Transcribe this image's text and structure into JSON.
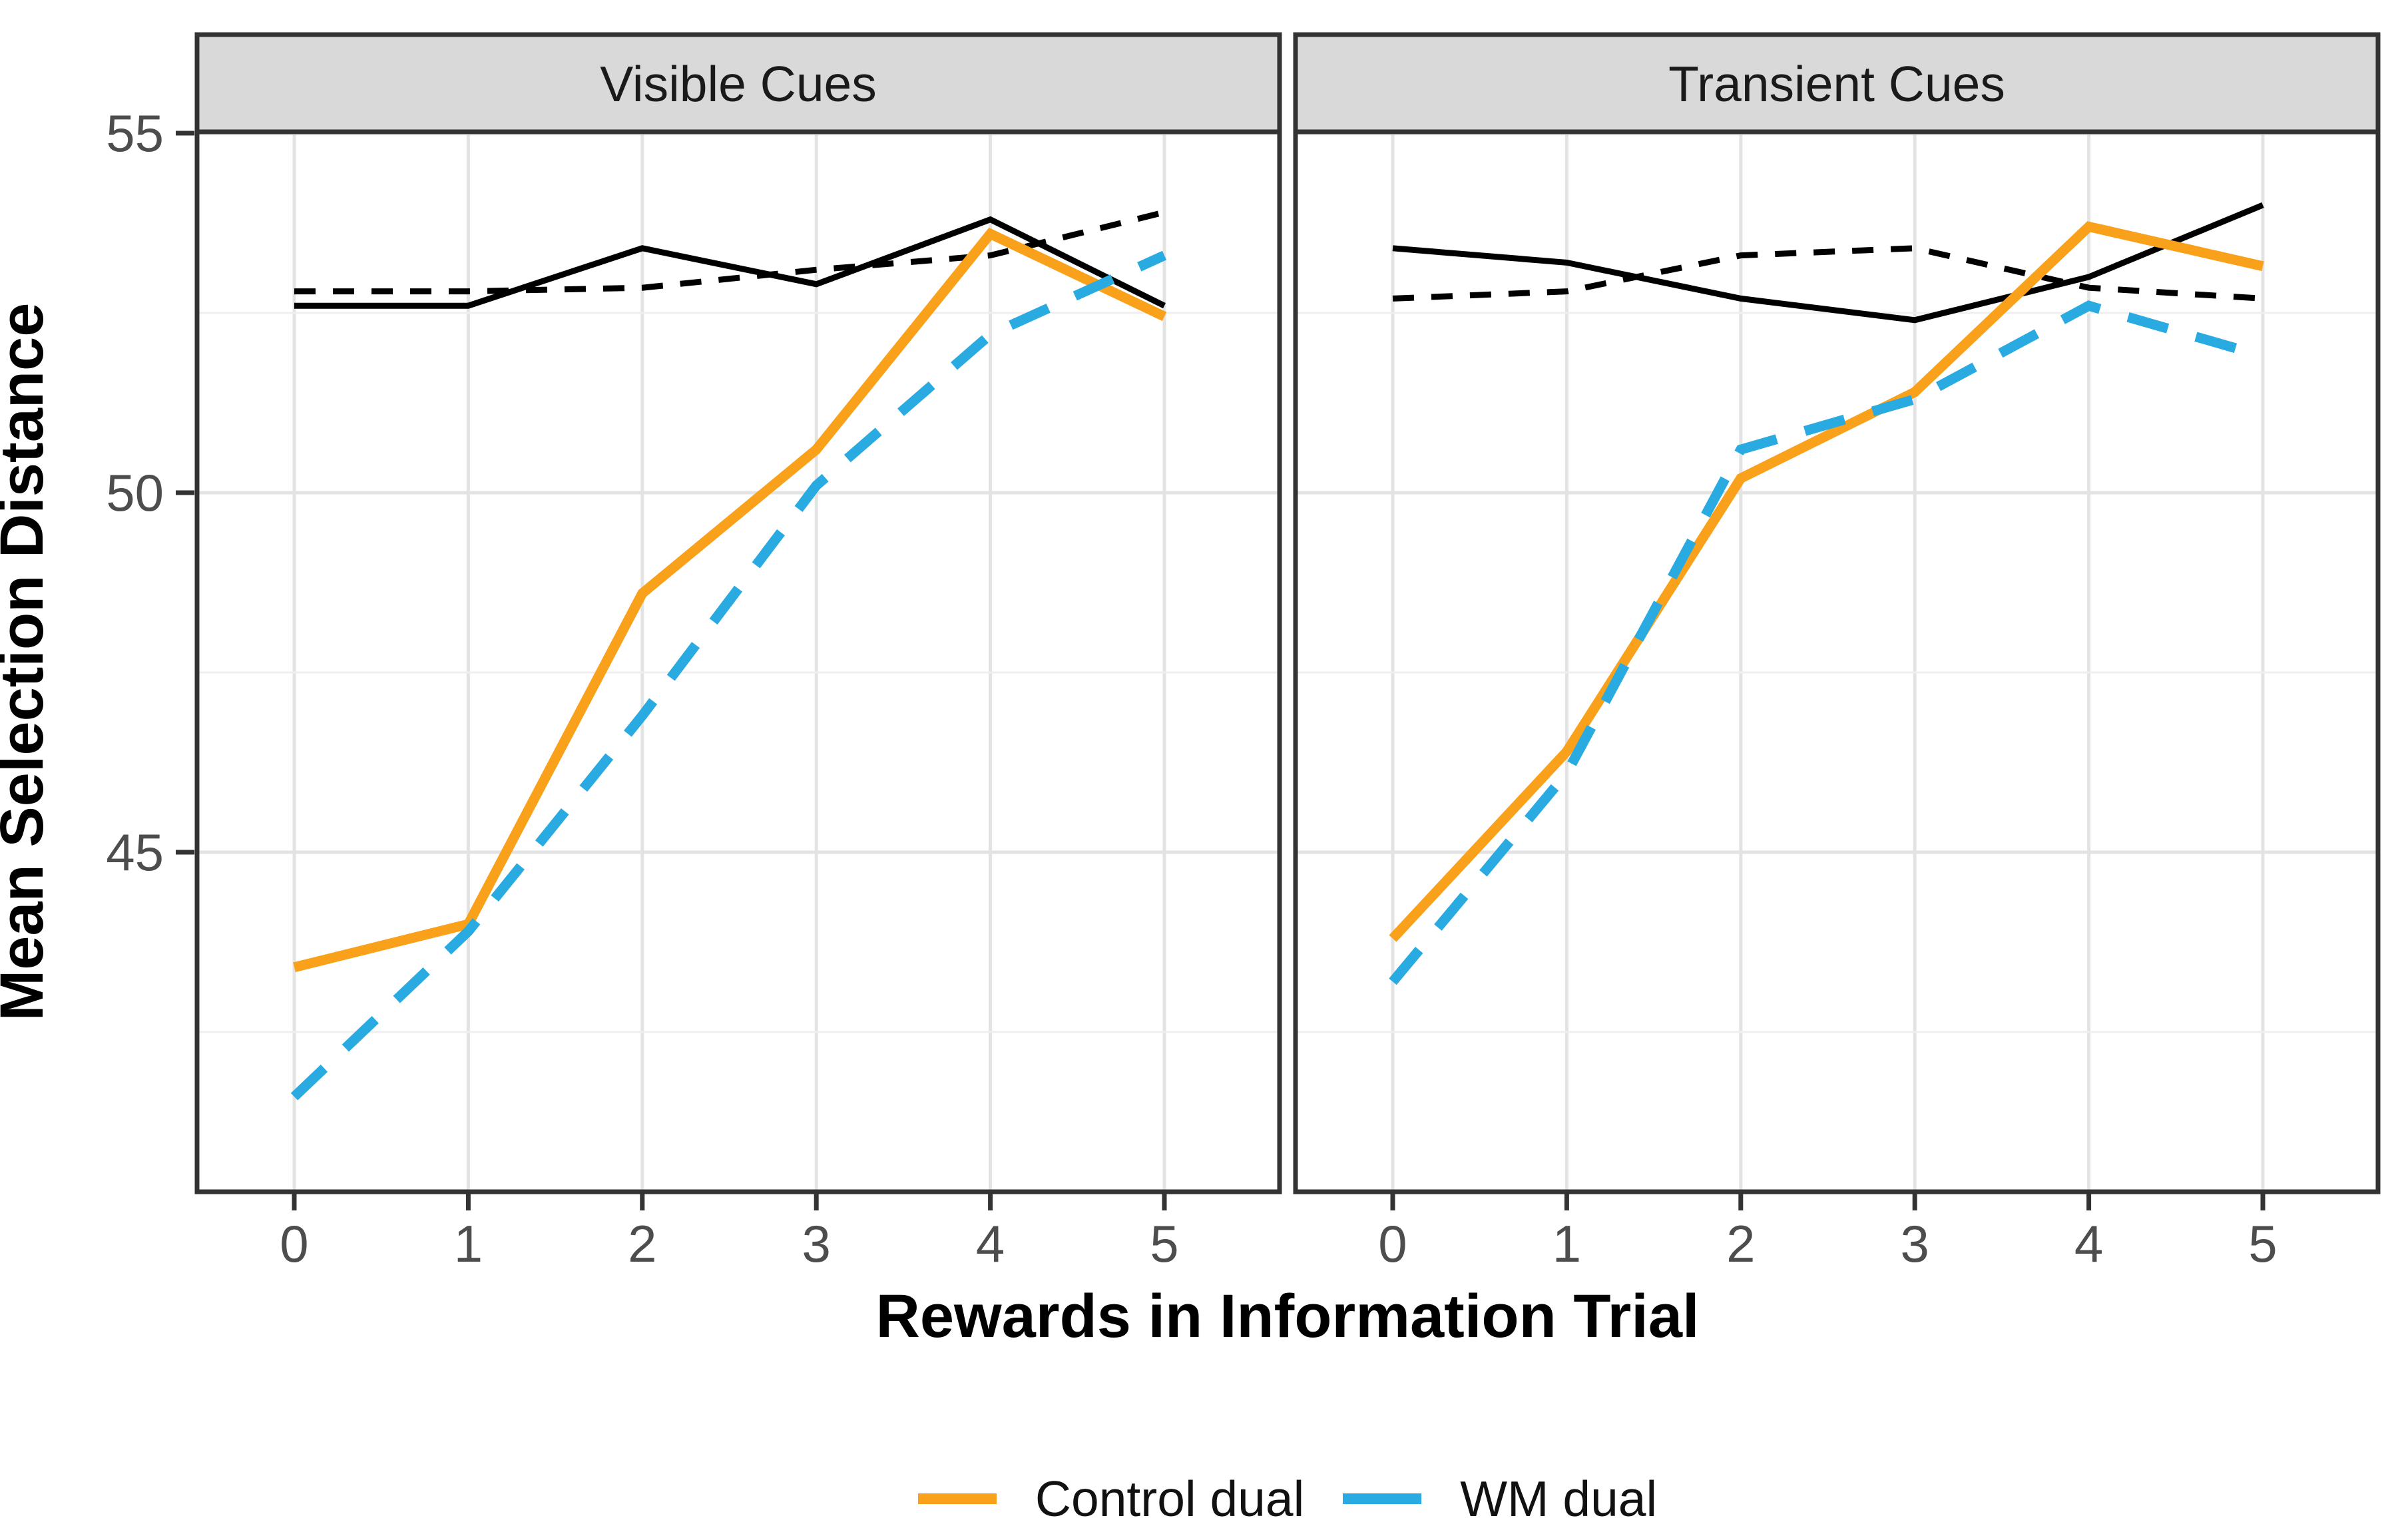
{
  "figure": {
    "background": "#FFFFFF"
  },
  "chart_data": {
    "type": "line",
    "x": [
      0,
      1,
      2,
      3,
      4,
      5
    ],
    "x_ticks": [
      "0",
      "1",
      "2",
      "3",
      "4",
      "5"
    ],
    "y_ticks": [
      "55",
      "50",
      "45"
    ],
    "y_tick_values": [
      55,
      50,
      45
    ],
    "ylim": [
      40.3,
      55.05
    ],
    "xlabel": "Rewards in Information Trial",
    "ylabel": "Mean Selection Distance",
    "grid": {
      "major_y": [
        55,
        50,
        45
      ],
      "minor_y": [
        52.5,
        47.5,
        42.5
      ],
      "vertical_at_x_ticks": true
    },
    "legend_position": "bottom",
    "facets": [
      {
        "title": "Visible Cues",
        "series": [
          {
            "name": "black solid (unlabeled)",
            "color": "#000000",
            "linetype": "solid",
            "width": 9,
            "values": [
              52.6,
              52.6,
              53.4,
              52.9,
              53.8,
              52.6
            ]
          },
          {
            "name": "black dashed (unlabeled)",
            "color": "#000000",
            "linetype": "dashed",
            "width": 9,
            "values": [
              52.8,
              52.8,
              52.85,
              53.1,
              53.3,
              53.9
            ]
          },
          {
            "name": "Control dual",
            "color": "#F9A11B",
            "linetype": "solid",
            "width": 15,
            "values": [
              43.4,
              44.0,
              48.6,
              50.6,
              53.6,
              52.45
            ]
          },
          {
            "name": "WM dual",
            "color": "#29ABE2",
            "linetype": "dashed",
            "width": 15,
            "values": [
              41.6,
              43.9,
              46.9,
              50.1,
              52.2,
              53.3
            ]
          }
        ]
      },
      {
        "title": "Transient Cues",
        "series": [
          {
            "name": "black solid (unlabeled)",
            "color": "#000000",
            "linetype": "solid",
            "width": 9,
            "values": [
              53.4,
              53.2,
              52.7,
              52.4,
              53.0,
              54.0
            ]
          },
          {
            "name": "black dashed (unlabeled)",
            "color": "#000000",
            "linetype": "dashed",
            "width": 9,
            "values": [
              52.7,
              52.8,
              53.3,
              53.4,
              52.85,
              52.7
            ]
          },
          {
            "name": "Control dual",
            "color": "#F9A11B",
            "linetype": "solid",
            "width": 15,
            "values": [
              43.8,
              46.4,
              50.2,
              51.4,
              53.7,
              53.15
            ]
          },
          {
            "name": "WM dual",
            "color": "#29ABE2",
            "linetype": "dashed",
            "width": 15,
            "values": [
              43.2,
              46.1,
              50.6,
              51.3,
              52.6,
              51.9
            ]
          }
        ]
      }
    ]
  },
  "legend": {
    "items": [
      {
        "label": "Control dual",
        "color": "#F9A11B",
        "linetype": "solid"
      },
      {
        "label": "WM dual",
        "color": "#29ABE2",
        "linetype": "dashed"
      }
    ]
  },
  "colors": {
    "orange": "#F9A11B",
    "blue": "#29ABE2",
    "black": "#000000",
    "strip_background": "#D9D9D9",
    "panel_border": "#333333",
    "grid_major": "#E3E3E3",
    "grid_minor": "#EFEFEF",
    "tick_text": "#4D4D4D"
  }
}
